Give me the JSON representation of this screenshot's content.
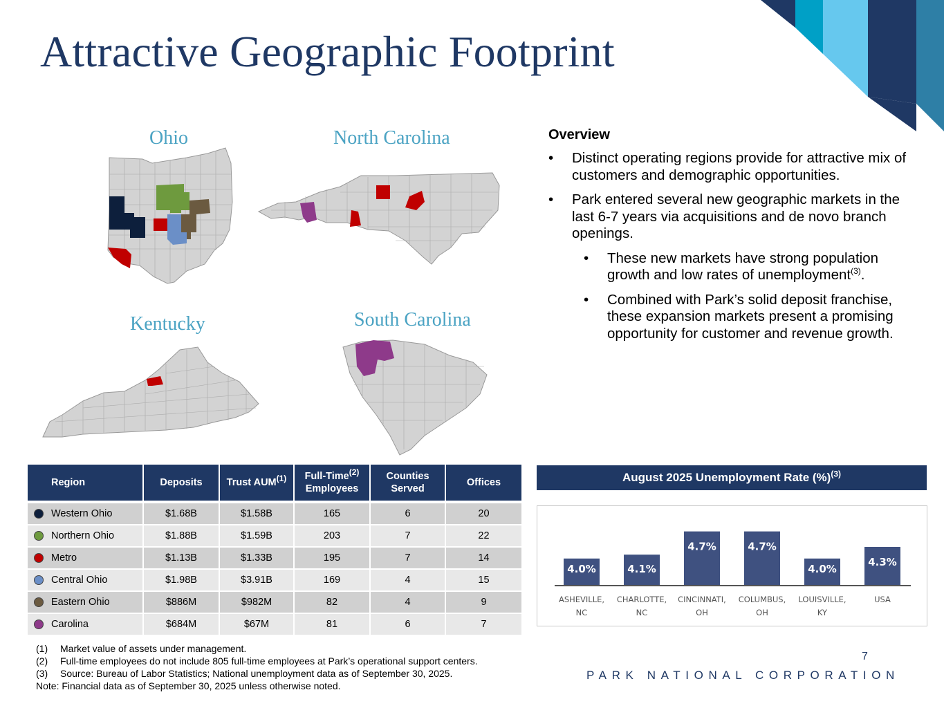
{
  "title": "Attractive Geographic Footprint",
  "maps": {
    "ohio": "Ohio",
    "north_carolina": "North Carolina",
    "kentucky": "Kentucky",
    "south_carolina": "South Carolina"
  },
  "overview": {
    "heading": "Overview",
    "bullet1": "Distinct operating regions provide for attractive mix of customers and demographic opportunities.",
    "bullet2": "Park entered several new geographic markets in the last 6-7 years via acquisitions and de novo branch openings.",
    "sub1_text": "These new markets have strong population growth and low rates of unemployment",
    "sub1_sup": "(3)",
    "sub1_end": ".",
    "sub2": "Combined with Park’s solid deposit franchise, these expansion markets present a promising opportunity for customer and revenue growth."
  },
  "table": {
    "headers": {
      "region": "Region",
      "deposits": "Deposits",
      "trust": "Trust AUM",
      "trust_sup": "(1)",
      "fte_line1": "Full-Time",
      "fte_sup": "(2)",
      "fte_line2": "Employees",
      "counties_line1": "Counties",
      "counties_line2": "Served",
      "offices": "Offices"
    },
    "rows": [
      {
        "region": "Western Ohio",
        "deposits": "$1.68B",
        "trust": "$1.58B",
        "fte": "165",
        "counties": "6",
        "offices": "20",
        "color": "#0d1f3c"
      },
      {
        "region": "Northern Ohio",
        "deposits": "$1.88B",
        "trust": "$1.59B",
        "fte": "203",
        "counties": "7",
        "offices": "22",
        "color": "#6e9a3e"
      },
      {
        "region": "Metro",
        "deposits": "$1.13B",
        "trust": "$1.33B",
        "fte": "195",
        "counties": "7",
        "offices": "14",
        "color": "#c00000"
      },
      {
        "region": "Central Ohio",
        "deposits": "$1.98B",
        "trust": "$3.91B",
        "fte": "169",
        "counties": "4",
        "offices": "15",
        "color": "#6b8fc7"
      },
      {
        "region": "Eastern Ohio",
        "deposits": "$886M",
        "trust": "$982M",
        "fte": "82",
        "counties": "4",
        "offices": "9",
        "color": "#6b5a40"
      },
      {
        "region": "Carolina",
        "deposits": "$684M",
        "trust": "$67M",
        "fte": "81",
        "counties": "6",
        "offices": "7",
        "color": "#8e3a8a"
      }
    ]
  },
  "chart_title": "August 2025 Unemployment Rate (%)",
  "chart_title_sup": "(3)",
  "chart_data": {
    "type": "bar",
    "title": "August 2025 Unemployment Rate (%)",
    "categories": [
      "ASHEVILLE, NC",
      "CHARLOTTE, NC",
      "CINCINNATI, OH",
      "COLUMBUS, OH",
      "LOUISVILLE, KY",
      "USA"
    ],
    "category_lines": [
      [
        "ASHEVILLE,",
        "NC"
      ],
      [
        "CHARLOTTE,",
        "NC"
      ],
      [
        "CINCINNATI,",
        "OH"
      ],
      [
        "COLUMBUS,",
        "OH"
      ],
      [
        "LOUISVILLE,",
        "KY"
      ],
      [
        "USA"
      ]
    ],
    "values": [
      4.0,
      4.1,
      4.7,
      4.7,
      4.0,
      4.3
    ],
    "labels": [
      "4.0%",
      "4.1%",
      "4.7%",
      "4.7%",
      "4.0%",
      "4.3%"
    ],
    "bar_color": "#3f5180",
    "grid": false
  },
  "footnotes": [
    {
      "num": "(1)",
      "text": "Market value of assets under management."
    },
    {
      "num": "(2)",
      "text": "Full-time employees do not include 805 full-time employees at Park’s operational support centers."
    },
    {
      "num": "(3)",
      "text": "Source: Bureau of Labor Statistics; National unemployment data as of September 30, 2025."
    }
  ],
  "note": "Note: Financial data as of September 30, 2025 unless otherwise noted.",
  "page_number": "7",
  "brand": "PARK NATIONAL CORPORATION",
  "colors": {
    "navy": "#1f3864",
    "map_label": "#4ba3c3",
    "map_fill": "#d3d3d3"
  }
}
